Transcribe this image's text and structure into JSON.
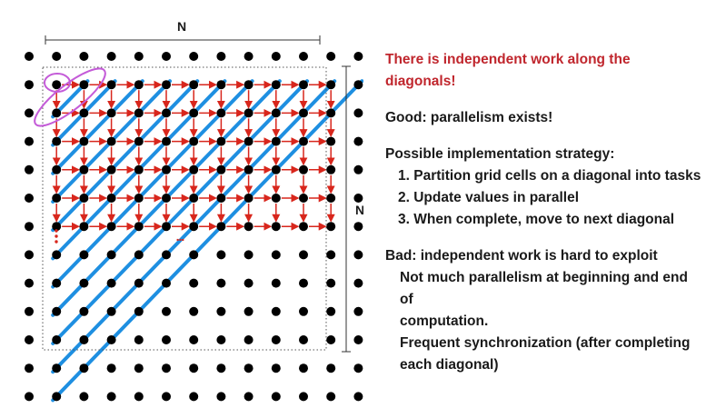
{
  "diagram": {
    "top_label": "N",
    "side_label": "N",
    "ellipsis": "...",
    "colors": {
      "dot": "#000000",
      "arrow": "#d8261c",
      "diagonal": "#1e8fe1",
      "highlight": "#c45bd8",
      "border": "#555555"
    }
  },
  "text": {
    "headline": "There is independent work along the diagonals!",
    "good": "Good: parallelism exists!",
    "strategy_title": "Possible implementation strategy:",
    "strategy_steps": [
      "1. Partition grid cells on a diagonal into tasks",
      "2. Update values in parallel",
      "3. When complete, move to next diagonal"
    ],
    "bad_title": "Bad: independent work is hard to exploit",
    "bad_line1a": "Not much parallelism at beginning and end of",
    "bad_line1b": "computation.",
    "bad_line2a": "Frequent synchronization (after completing",
    "bad_line2b": "each diagonal)"
  }
}
